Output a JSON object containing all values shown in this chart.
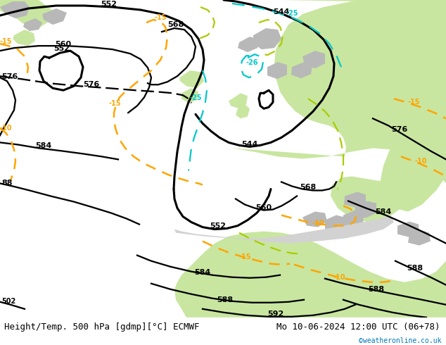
{
  "title_left": "Height/Temp. 500 hPa [gdmp][°C] ECMWF",
  "title_right": "Mo 10-06-2024 12:00 UTC (06+78)",
  "copyright": "©weatheronline.co.uk",
  "bg_ocean_color": "#d2d2d2",
  "land_green_color": "#c8e6a0",
  "land_gray_color": "#b8b8b8",
  "height_contour_color": "#000000",
  "temp_contour_color": "#ffa500",
  "temp_cold_color": "#00c8c8",
  "temp_warm_color": "#aacc00",
  "figsize": [
    6.34,
    4.9
  ],
  "dpi": 100,
  "bottom_bar_height": 0.08,
  "bottom_bar_color": "#e8e8e8",
  "title_fontsize": 9,
  "label_fontsize": 8
}
